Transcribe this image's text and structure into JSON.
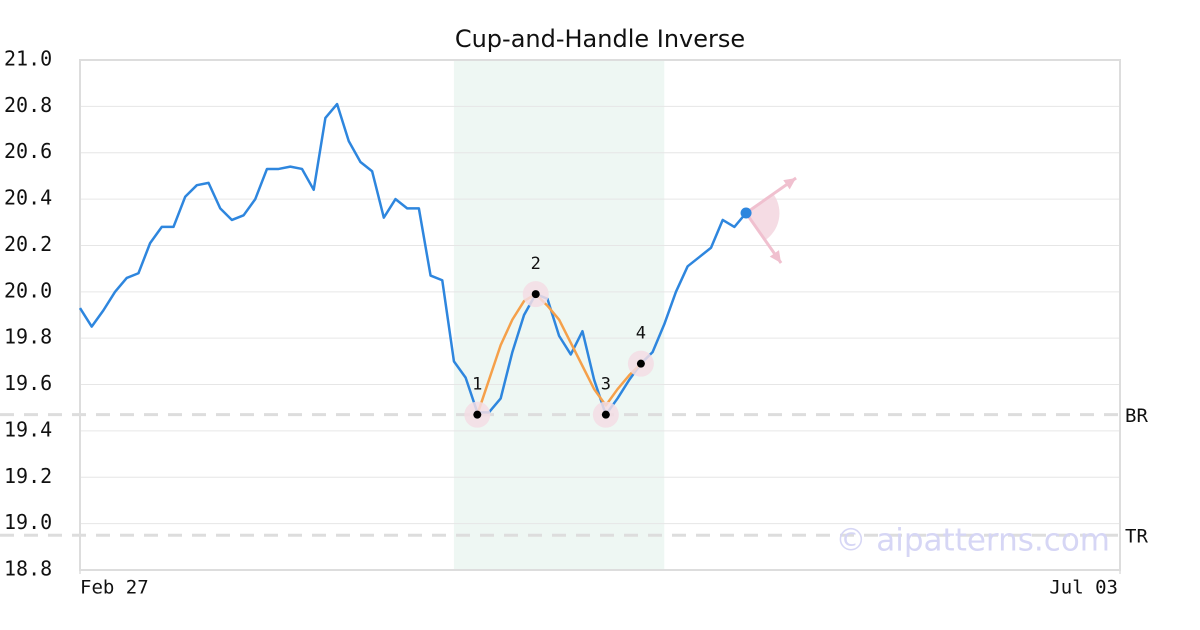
{
  "chart_data": {
    "type": "line",
    "title": "Cup-and-Handle Inverse",
    "x": [
      0,
      1,
      2,
      3,
      4,
      5,
      6,
      7,
      8,
      9,
      10,
      11,
      12,
      13,
      14,
      15,
      16,
      17,
      18,
      19,
      20,
      21,
      22,
      23,
      24,
      25,
      26,
      27,
      28,
      29,
      30,
      31,
      32,
      33,
      34,
      35,
      36,
      37,
      38,
      39,
      40,
      41,
      42,
      43,
      44,
      45,
      46,
      47,
      48,
      49,
      50,
      51,
      52,
      53,
      54,
      55,
      56,
      57
    ],
    "values": [
      19.93,
      19.85,
      19.92,
      20.0,
      20.06,
      20.08,
      20.21,
      20.28,
      20.28,
      20.41,
      20.46,
      20.47,
      20.36,
      20.31,
      20.33,
      20.4,
      20.53,
      20.53,
      20.54,
      20.53,
      20.44,
      20.75,
      20.81,
      20.65,
      20.56,
      20.52,
      20.32,
      20.4,
      20.36,
      20.36,
      20.07,
      20.05,
      19.7,
      19.63,
      19.48,
      19.48,
      19.54,
      19.74,
      19.9,
      19.99,
      19.97,
      19.81,
      19.73,
      19.83,
      19.62,
      19.47,
      19.54,
      19.62,
      19.69,
      19.74,
      19.86,
      20.0,
      20.11,
      20.15,
      20.19,
      20.31,
      20.28,
      20.34
    ],
    "color": "#2e86de",
    "xlim": [
      0,
      89
    ],
    "xticks": [
      {
        "value": 0,
        "label": "Feb 27"
      },
      {
        "value": 89,
        "label": "Jul 03"
      }
    ],
    "ylim": [
      18.8,
      21.0
    ],
    "yticks": [
      {
        "value": 18.8,
        "label": "18.8"
      },
      {
        "value": 19.0,
        "label": "19.0"
      },
      19.2,
      19.4,
      19.6,
      19.8,
      {
        "value": 20.0,
        "label": "20.0"
      },
      20.2,
      20.4,
      20.6,
      20.8,
      {
        "value": 21.0,
        "label": "21.0"
      }
    ],
    "grid": true,
    "highlight": [
      32,
      50
    ],
    "highlight_color": "#eef7f3",
    "pattern_line": {
      "color": "#f5a04a",
      "x": [
        34,
        35,
        36,
        37,
        38,
        39,
        40,
        41,
        42,
        43,
        44,
        45,
        46,
        47,
        48
      ],
      "values": [
        19.47,
        19.62,
        19.77,
        19.88,
        19.96,
        19.99,
        19.94,
        19.88,
        19.78,
        19.68,
        19.58,
        19.51,
        19.58,
        19.64,
        19.69
      ]
    },
    "pattern_points": {
      "x": [
        34,
        39,
        45,
        48
      ],
      "values": [
        19.47,
        19.99,
        19.47,
        19.69
      ],
      "labels": [
        "1",
        "2",
        "3",
        "4"
      ]
    },
    "levels": [
      {
        "label": "BR",
        "value": 19.47
      },
      {
        "label": "TR",
        "value": 18.95
      }
    ],
    "watermark": "© aipatterns.com"
  }
}
